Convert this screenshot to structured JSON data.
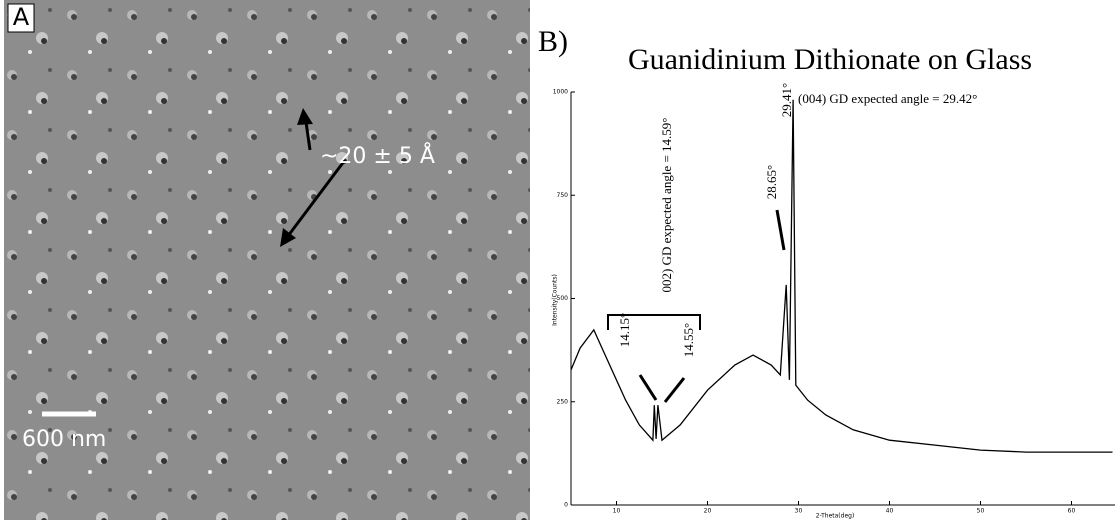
{
  "panel_a": {
    "label": "A",
    "scale_bar": "600 nm",
    "annotation": "~20 ± 5 Å"
  },
  "panel_b_label": "B)",
  "chart_data": {
    "type": "line",
    "title": "Guanidinium Dithionate on Glass",
    "x_label": "2-Theta(deg)",
    "y_label": "Intensity(Counts)",
    "x": [
      5,
      6,
      7.5,
      9,
      11,
      12.5,
      14,
      14.15,
      14.35,
      14.55,
      15,
      17,
      20,
      23,
      25,
      27,
      28,
      28.65,
      29,
      29.41,
      29.7,
      31,
      33,
      36,
      40,
      45,
      50,
      55,
      60,
      64.5
    ],
    "values": [
      327,
      380,
      424,
      351,
      254,
      194,
      157,
      242,
      160,
      242,
      157,
      194,
      278,
      339,
      363,
      339,
      315,
      533,
      303,
      981,
      290,
      254,
      218,
      182,
      157,
      145,
      133,
      128,
      128,
      128
    ],
    "color": "#000000",
    "xlim": [
      5,
      65
    ],
    "ylim": [
      0,
      1000
    ],
    "xticks": [
      10,
      20,
      30,
      40,
      50,
      60
    ],
    "yticks": [
      0,
      250,
      500,
      750,
      1000
    ],
    "annotations": [
      "002) GD expected angle = 14.59°",
      "14.15°",
      "14.55°",
      "28.65°",
      "29.41°",
      "(004) GD expected angle = 29.42°"
    ]
  }
}
